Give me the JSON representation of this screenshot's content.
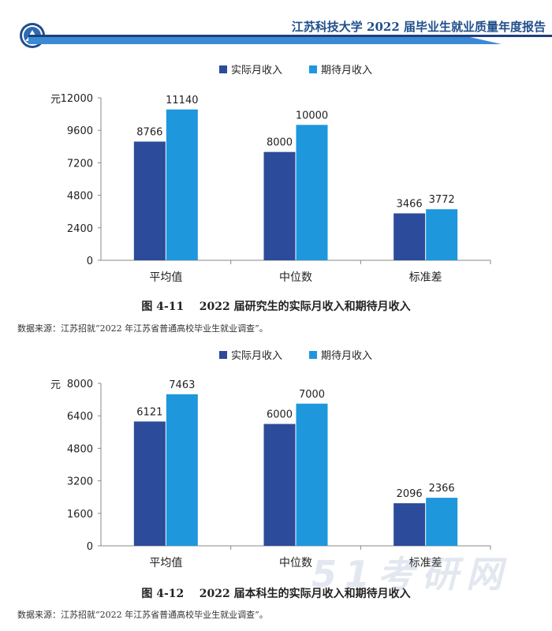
{
  "header": {
    "title": "江苏科技大学 2022 届毕业生就业质量年度报告",
    "colors": {
      "bar_dark": "#1f3f7a",
      "bar_light": "#3c8ad6",
      "title": "#1f4e8c"
    }
  },
  "legend": {
    "actual": "实际月收入",
    "expected": "期待月收入"
  },
  "unit_label": "元",
  "colors": {
    "actual": "#2c4b9a",
    "expected": "#1e97dd",
    "axis": "#888888"
  },
  "figures": [
    {
      "caption": "图 4-11    2022 届研究生的实际月收入和期待月收入",
      "source": "数据来源：江苏招就“2022 年江苏省普通高校毕业生就业调查”。"
    },
    {
      "caption": "图 4-12    2022 届本科生的实际月收入和期待月收入",
      "source": "数据来源：江苏招就“2022 年江苏省普通高校毕业生就业调查”。"
    }
  ],
  "chart_data": [
    {
      "type": "bar",
      "categories": [
        "平均值",
        "中位数",
        "标准差"
      ],
      "series": [
        {
          "name": "实际月收入",
          "values": [
            8766,
            8000,
            3466
          ]
        },
        {
          "name": "期待月收入",
          "values": [
            11140,
            10000,
            3772
          ]
        }
      ],
      "ylabel": "元",
      "ylim": [
        0,
        12000
      ],
      "yticks": [
        0,
        2400,
        4800,
        7200,
        9600,
        12000
      ],
      "legend": "top-center",
      "grid": false
    },
    {
      "type": "bar",
      "categories": [
        "平均值",
        "中位数",
        "标准差"
      ],
      "series": [
        {
          "name": "实际月收入",
          "values": [
            6121,
            6000,
            2096
          ]
        },
        {
          "name": "期待月收入",
          "values": [
            7463,
            7000,
            2366
          ]
        }
      ],
      "ylabel": "元",
      "ylim": [
        0,
        8000
      ],
      "yticks": [
        0,
        1600,
        3200,
        4800,
        6400,
        8000
      ],
      "legend": "top-center",
      "grid": false
    }
  ],
  "watermark": "51考研网"
}
